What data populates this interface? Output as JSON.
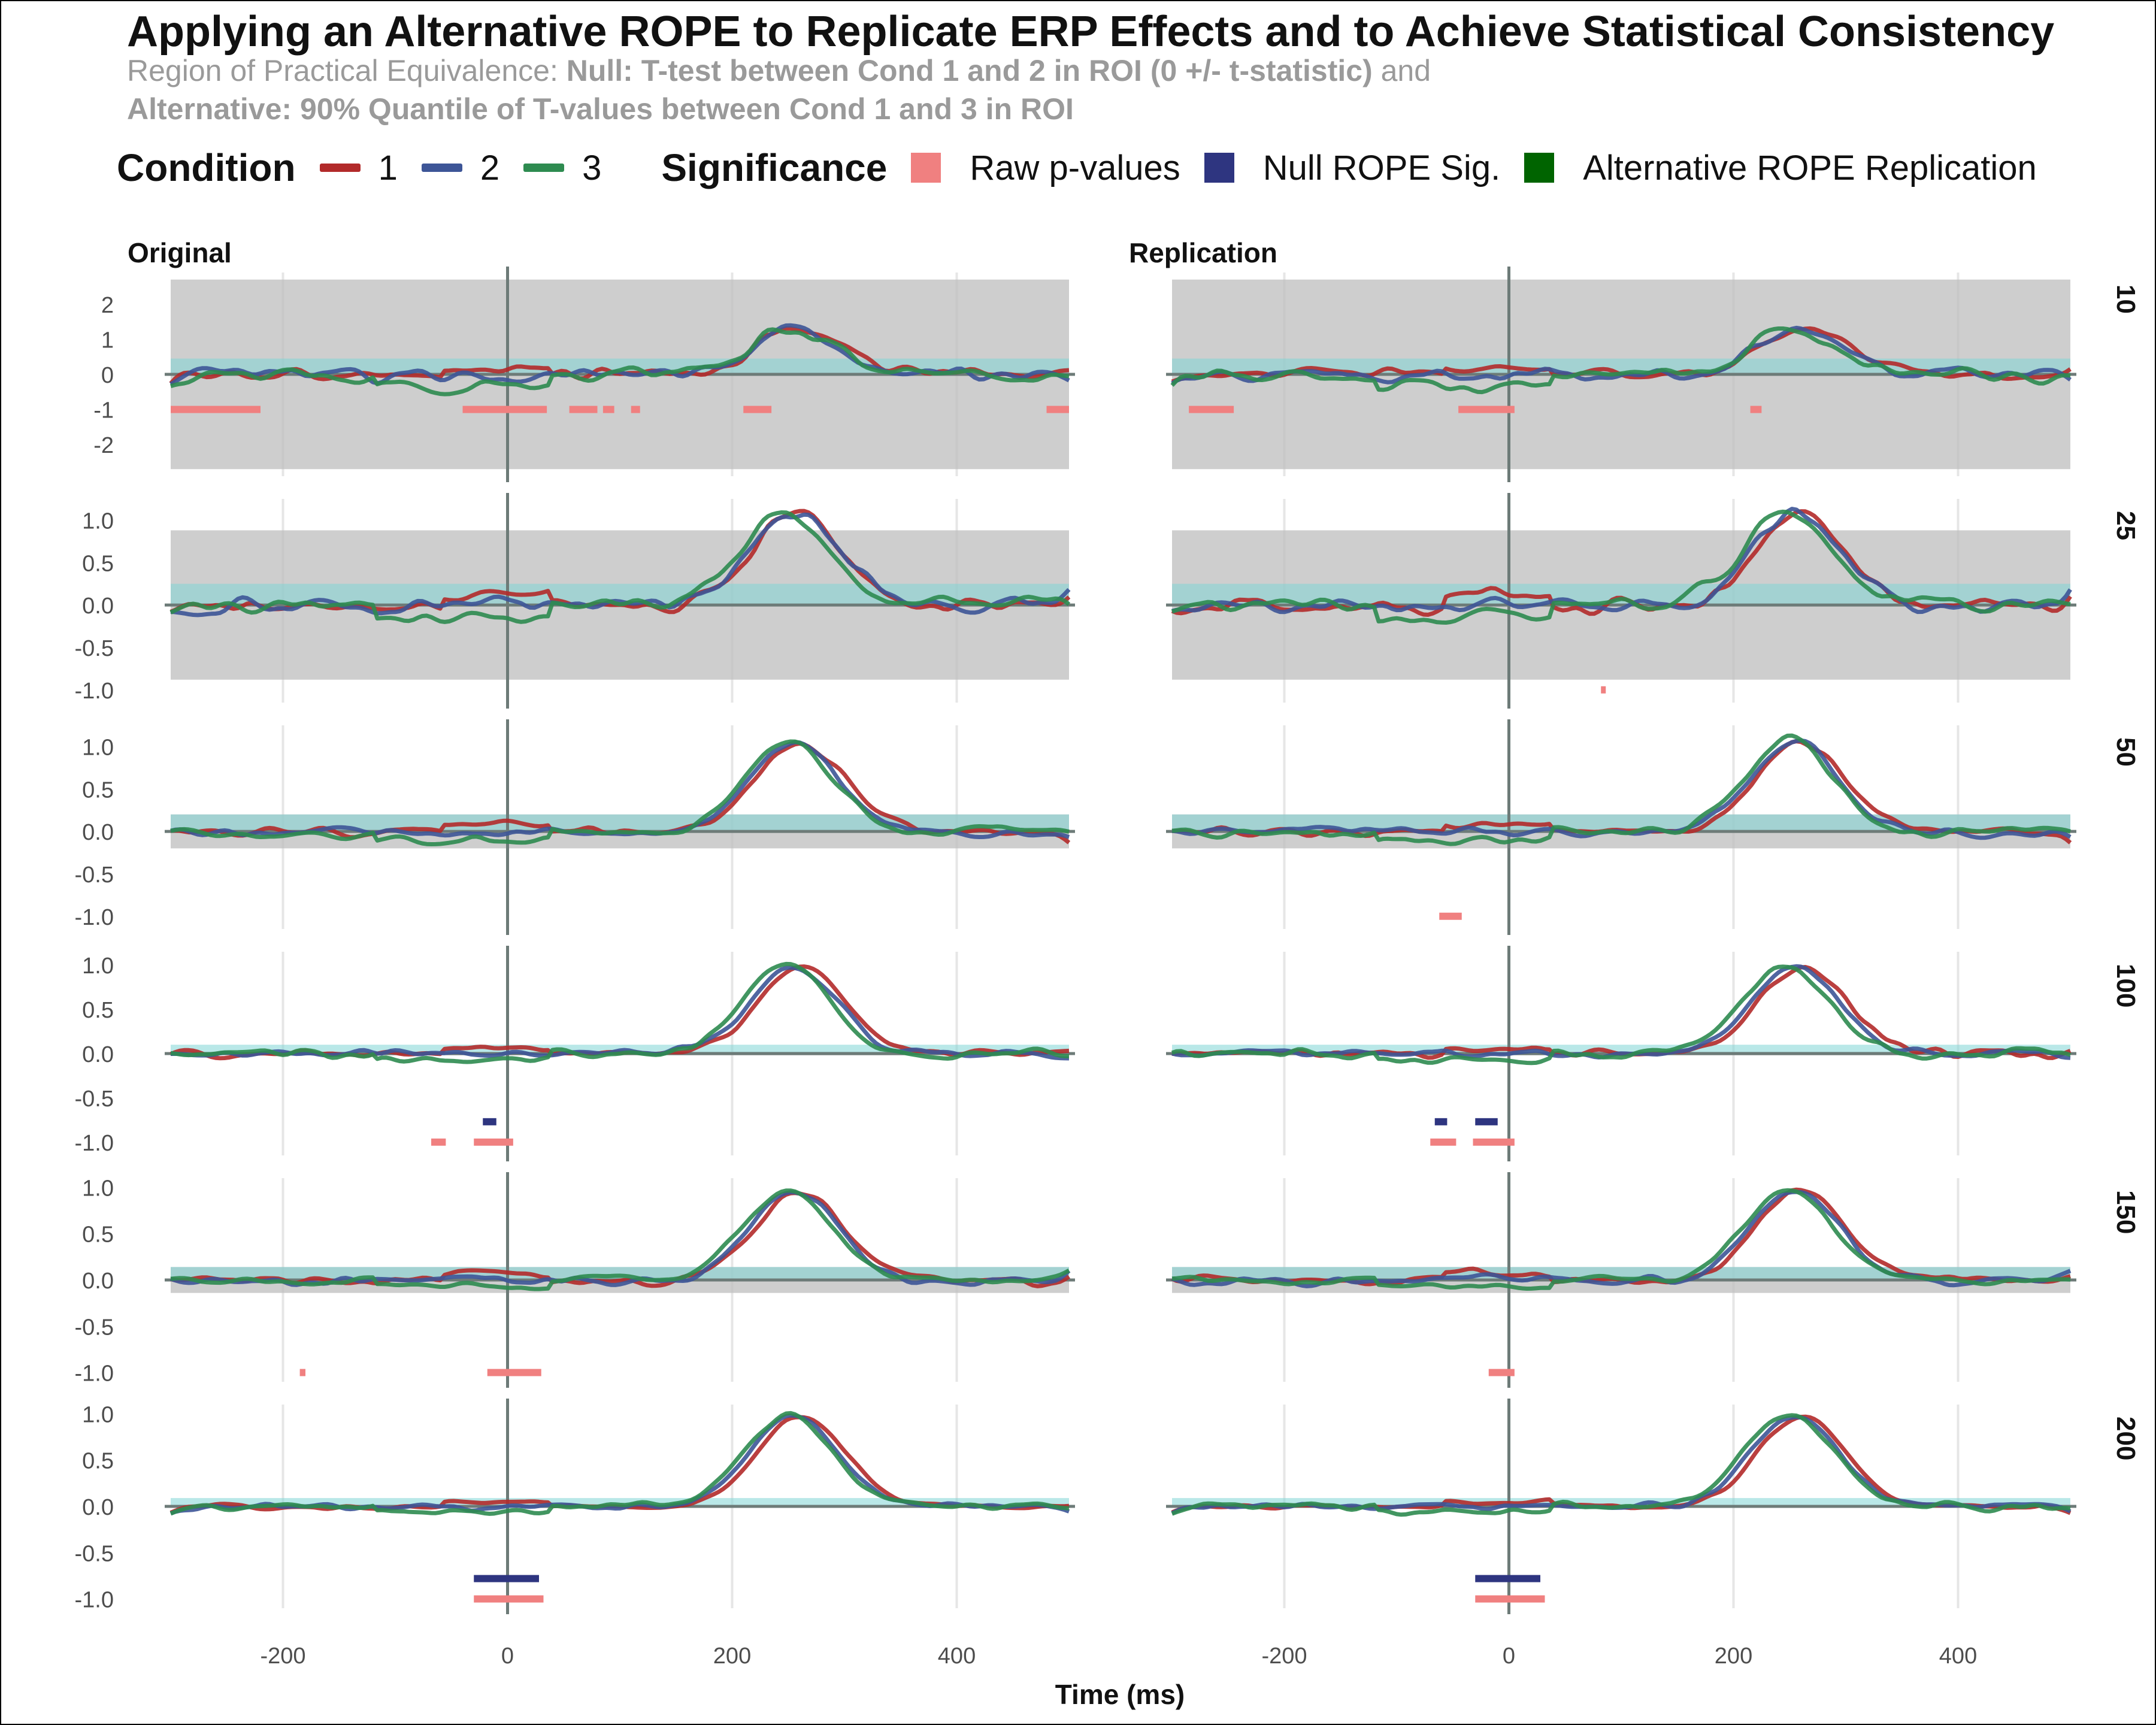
{
  "title": "Applying an Alternative ROPE to Replicate ERP Effects and to Achieve Statistical Consistency",
  "subtitle_line1_prefix": "Region of Practical Equivalence: ",
  "subtitle_line1_bold": "Null: T-test between Cond 1 and 2 in ROI (0 +/- t-statistic)",
  "subtitle_line1_suffix": " and",
  "subtitle_line2_bold": "Alternative: 90% Quantile of T-values between Cond 1 and 3 in ROI",
  "legend": {
    "condition_title": "Condition",
    "conditions": [
      {
        "label": "1",
        "color": "#b22a2a"
      },
      {
        "label": "2",
        "color": "#3d5597"
      },
      {
        "label": "3",
        "color": "#2e8b50"
      }
    ],
    "significance_title": "Significance",
    "significance": [
      {
        "label": "Raw p-values",
        "color": "#f08080"
      },
      {
        "label": "Null ROPE Sig.",
        "color": "#2e3580"
      },
      {
        "label": "Alternative ROPE Replication",
        "color": "#006400"
      }
    ]
  },
  "chart_data": {
    "type": "line",
    "xlabel": "Time (ms)",
    "ylabel": "",
    "xlim": [
      -300,
      500
    ],
    "xticks": [
      -200,
      0,
      200,
      400
    ],
    "columns": [
      "Original",
      "Replication"
    ],
    "rows": [
      "10",
      "25",
      "50",
      "100",
      "150",
      "200"
    ],
    "panel_rows": [
      {
        "strip": "10",
        "ylim": [
          -2.9,
          2.9
        ],
        "yticks": [
          2,
          1,
          0,
          -1,
          -2
        ],
        "ytick_labels": [
          "2",
          "1",
          "0",
          "-1",
          "-2"
        ],
        "null_rope": [
          -2.7,
          2.7
        ],
        "alt_rope": [
          0,
          0.45
        ],
        "amp": 1.3,
        "noise": 0.32,
        "raw_sig": {
          "Original": [
            [
              -300,
              -220
            ],
            [
              -40,
              35
            ],
            [
              55,
              80
            ],
            [
              85,
              95
            ],
            [
              110,
              118
            ],
            [
              210,
              235
            ],
            [
              480,
              500
            ]
          ],
          "Replication": [
            [
              -285,
              -245
            ],
            [
              -45,
              5
            ],
            [
              215,
              225
            ]
          ]
        },
        "null_sig": {
          "Original": [],
          "Replication": []
        },
        "sig_y": -1.0
      },
      {
        "strip": "25",
        "ylim": [
          -1.15,
          1.25
        ],
        "yticks": [
          1.0,
          0.5,
          0.0,
          -0.5,
          -1.0
        ],
        "ytick_labels": [
          "1.0",
          "0.5",
          "0.0",
          "-0.5",
          "-1.0"
        ],
        "null_rope": [
          -0.88,
          0.88
        ],
        "alt_rope": [
          0,
          0.25
        ],
        "amp": 1.1,
        "noise": 0.2,
        "raw_sig": {
          "Original": [],
          "Replication": [
            [
              82,
              86
            ]
          ]
        },
        "null_sig": {
          "Original": [],
          "Replication": []
        },
        "sig_y": -1.0
      },
      {
        "strip": "50",
        "ylim": [
          -1.15,
          1.25
        ],
        "yticks": [
          1.0,
          0.5,
          0.0,
          -0.5,
          -1.0
        ],
        "ytick_labels": [
          "1.0",
          "0.5",
          "0.0",
          "-0.5",
          "-1.0"
        ],
        "null_rope": [
          -0.2,
          0.2
        ],
        "alt_rope": [
          0,
          0.2
        ],
        "amp": 1.05,
        "noise": 0.13,
        "raw_sig": {
          "Original": [],
          "Replication": [
            [
              -62,
              -42
            ]
          ]
        },
        "null_sig": {
          "Original": [],
          "Replication": []
        },
        "sig_y": -1.0
      },
      {
        "strip": "100",
        "ylim": [
          -1.15,
          1.15
        ],
        "yticks": [
          1.0,
          0.5,
          0.0,
          -0.5,
          -1.0
        ],
        "ytick_labels": [
          "1.0",
          "0.5",
          "0.0",
          "-0.5",
          "-1.0"
        ],
        "null_rope": [
          -0.02,
          0.02
        ],
        "alt_rope": [
          0,
          0.1
        ],
        "amp": 0.97,
        "noise": 0.09,
        "raw_sig": {
          "Original": [
            [
              -68,
              -55
            ],
            [
              -30,
              5
            ]
          ],
          "Replication": [
            [
              -70,
              -47
            ],
            [
              -32,
              5
            ]
          ]
        },
        "null_sig": {
          "Original": [
            [
              -22,
              -10
            ]
          ],
          "Replication": [
            [
              -66,
              -55
            ],
            [
              -30,
              -10
            ]
          ]
        },
        "sig_y": -1.0
      },
      {
        "strip": "150",
        "ylim": [
          -1.1,
          1.1
        ],
        "yticks": [
          1.0,
          0.5,
          0.0,
          -0.5,
          -1.0
        ],
        "ytick_labels": [
          "1.0",
          "0.5",
          "0.0",
          "-0.5",
          "-1.0"
        ],
        "null_rope": [
          -0.14,
          0.14
        ],
        "alt_rope": [
          0,
          0.14
        ],
        "amp": 0.96,
        "noise": 0.09,
        "raw_sig": {
          "Original": [
            [
              -185,
              -180
            ],
            [
              -18,
              30
            ]
          ],
          "Replication": [
            [
              -18,
              5
            ]
          ]
        },
        "null_sig": {
          "Original": [],
          "Replication": []
        },
        "sig_y": -1.0
      },
      {
        "strip": "200",
        "ylim": [
          -1.1,
          1.1
        ],
        "yticks": [
          1.0,
          0.5,
          0.0,
          -0.5,
          -1.0
        ],
        "ytick_labels": [
          "1.0",
          "0.5",
          "0.0",
          "-0.5",
          "-1.0"
        ],
        "null_rope": [
          -0.01,
          0.01
        ],
        "alt_rope": [
          0,
          0.09
        ],
        "amp": 0.98,
        "noise": 0.07,
        "raw_sig": {
          "Original": [
            [
              -30,
              32
            ]
          ],
          "Replication": [
            [
              -30,
              32
            ]
          ]
        },
        "null_sig": {
          "Original": [
            [
              -30,
              28
            ]
          ],
          "Replication": [
            [
              -30,
              28
            ]
          ]
        },
        "sig_y": -1.0
      }
    ]
  }
}
